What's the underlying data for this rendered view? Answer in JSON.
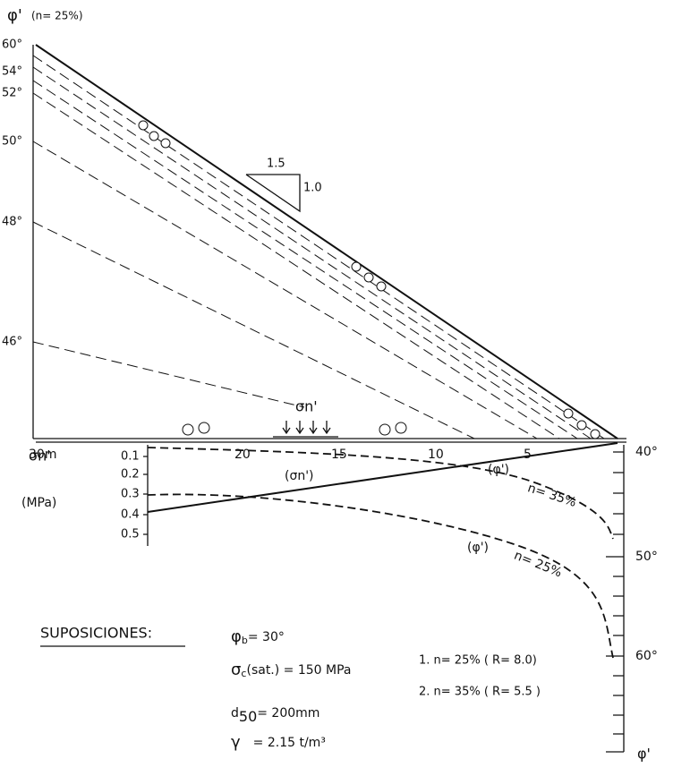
{
  "axis_title": {
    "symbol": "φ'",
    "text": "(n= 25%)"
  },
  "left_angles": [
    "60°",
    "54°",
    "52°",
    "50°",
    "48°",
    "46°"
  ],
  "slope": {
    "h": "1.5",
    "v": "1.0"
  },
  "load_label": "σn'",
  "distance_ticks": [
    "30m",
    "20",
    "15",
    "10",
    "5"
  ],
  "stress_axis": {
    "label": "σn'",
    "unit": "(MPa)",
    "ticks": [
      "0.1",
      "0.2",
      "0.3",
      "0.4",
      "0.5"
    ]
  },
  "curve_labels": {
    "stress": "(σn')",
    "phi_35": "(φ')",
    "n_35": "n= 35%",
    "phi_25": "(φ')",
    "n_25": "n= 25%"
  },
  "right_axis": {
    "ticks": [
      "40°",
      "50°",
      "60°"
    ],
    "label": "φ'"
  },
  "assumptions": {
    "title": "SUPOSICIONES:",
    "phi_b": {
      "symbol": "φ",
      "sub": "b",
      "text": "= 30°"
    },
    "sigma_c": {
      "symbol": "σ",
      "sub": "c",
      "text": "(sat.) = 150 MPa"
    },
    "d50": {
      "symbol": "d",
      "sub": "50",
      "text": "= 200mm"
    },
    "gamma": {
      "symbol": "γ",
      "text": "= 2.15 t/m³"
    },
    "cases": [
      "1.  n= 25% ( R= 8.0)",
      "2.  n= 35% ( R= 5.5 )"
    ]
  }
}
